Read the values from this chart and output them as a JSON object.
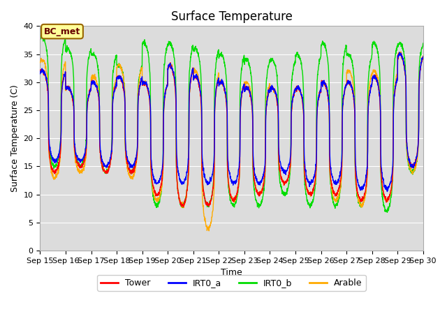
{
  "title": "Surface Temperature",
  "ylabel": "Surface Temperature (C)",
  "xlabel": "Time",
  "ylim": [
    0,
    40
  ],
  "xlim_days": [
    0,
    15
  ],
  "x_tick_labels": [
    "Sep 15",
    "Sep 16",
    "Sep 17",
    "Sep 18",
    "Sep 19",
    "Sep 20",
    "Sep 21",
    "Sep 22",
    "Sep 23",
    "Sep 24",
    "Sep 25",
    "Sep 26",
    "Sep 27",
    "Sep 28",
    "Sep 29",
    "Sep 30"
  ],
  "bg_color": "#dcdcdc",
  "fig_color": "#ffffff",
  "annotation_text": "BC_met",
  "annotation_bg": "#ffff99",
  "annotation_border": "#996600",
  "colors": {
    "Tower": "#ff0000",
    "IRT0_a": "#0000ff",
    "IRT0_b": "#00dd00",
    "Arable": "#ffaa00"
  },
  "line_width": 1.0,
  "day_peaks_tower": [
    32,
    29,
    30,
    31,
    30,
    33,
    31,
    30,
    29,
    29,
    29,
    30,
    30,
    31,
    35
  ],
  "day_peaks_irta": [
    32,
    29,
    30,
    31,
    30,
    33,
    31,
    30,
    29,
    29,
    29,
    30,
    30,
    31,
    35
  ],
  "day_peaks_irtb": [
    38,
    36,
    35,
    33,
    37,
    37,
    36,
    35,
    34,
    34,
    35,
    37,
    35,
    37,
    37
  ],
  "day_peaks_arable": [
    34,
    29,
    31,
    33,
    30,
    33,
    32,
    30,
    30,
    29,
    29,
    30,
    32,
    32,
    35
  ],
  "day_mins_tower": [
    14,
    15,
    14,
    14,
    10,
    8,
    8,
    9,
    10,
    12,
    10,
    10,
    9,
    9,
    15
  ],
  "day_mins_irta": [
    16,
    16,
    15,
    15,
    12,
    12,
    12,
    12,
    12,
    14,
    12,
    12,
    11,
    11,
    15
  ],
  "day_mins_irtb": [
    15,
    15,
    14,
    14,
    8,
    8,
    8,
    8,
    8,
    10,
    8,
    8,
    8,
    7,
    14
  ],
  "day_mins_arable": [
    13,
    14,
    14,
    13,
    9,
    8,
    4,
    9,
    10,
    12,
    10,
    9,
    8,
    9,
    14
  ],
  "title_fontsize": 12,
  "axis_fontsize": 9,
  "tick_fontsize": 8
}
